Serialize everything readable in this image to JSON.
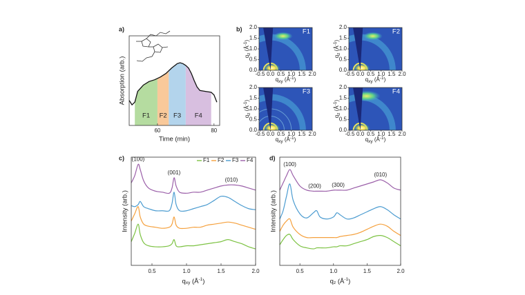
{
  "panel_a": {
    "label": "a)",
    "type": "area",
    "x_label": "Time (min)",
    "y_label": "Absorption (arb.)",
    "xlim": [
      50,
      82
    ],
    "ylim": [
      0,
      100
    ],
    "xticks": [
      60,
      80
    ],
    "color": "#111111",
    "x": [
      50,
      51,
      52,
      53,
      55,
      57,
      59,
      61,
      63,
      65,
      67,
      68,
      69,
      70,
      71,
      72,
      73,
      74,
      75,
      77,
      79,
      80,
      81
    ],
    "values": [
      28,
      23,
      26,
      38,
      45,
      49,
      51,
      54,
      58,
      64,
      69,
      70,
      69,
      67,
      64,
      58,
      50,
      43,
      39,
      38,
      37,
      34,
      26
    ],
    "fractions": [
      {
        "name": "F1",
        "start": 52,
        "end": 60,
        "color": "#b5dca0"
      },
      {
        "name": "F2",
        "start": 60,
        "end": 64,
        "color": "#f9c99a"
      },
      {
        "name": "F3",
        "start": 64,
        "end": 70,
        "color": "#b3d4ec"
      },
      {
        "name": "F4",
        "start": 70,
        "end": 79,
        "color": "#d8bfe0"
      }
    ]
  },
  "panel_b": {
    "label": "b)",
    "type": "image-grid",
    "images": [
      {
        "name": "F1"
      },
      {
        "name": "F2"
      },
      {
        "name": "F3"
      },
      {
        "name": "F4"
      }
    ],
    "x_label": {
      "main": "q",
      "sub": "xy",
      "unit": " (Å",
      "sup": "-1",
      "close": ")"
    },
    "y_label": {
      "main": "q",
      "sub": "z",
      "unit": " (Å",
      "sup": "-1",
      "close": ")"
    },
    "xlim": [
      -0.55,
      2.0
    ],
    "ylim": [
      0,
      2.0
    ],
    "xticks": [
      -0.5,
      {
        "value": 0,
        "label": "0.0"
      },
      0.5,
      {
        "value": 1,
        "label": "1.0"
      },
      1.5,
      {
        "value": 2,
        "label": "2.0"
      }
    ],
    "yticks": [
      {
        "value": 0,
        "label": "0.0"
      },
      0.5,
      {
        "value": 1,
        "label": "1.0"
      },
      1.5,
      {
        "value": 2,
        "label": "2.0"
      }
    ]
  },
  "panel_c": {
    "label": "c)",
    "type": "line",
    "y_label": "Intensity (arb.)",
    "x_label": {
      "main": "q",
      "sub": "xy",
      "unit": " (Å",
      "sup": "-1",
      "close": ")"
    },
    "xlim": [
      0.2,
      2.0
    ],
    "ylim": [
      0,
      105
    ],
    "xticks": [
      0.5,
      {
        "value": 1,
        "label": "1.0"
      },
      1.5,
      {
        "value": 2,
        "label": "2.0"
      }
    ],
    "x": [
      0.2,
      0.25,
      0.3,
      0.33,
      0.38,
      0.45,
      0.55,
      0.65,
      0.75,
      0.79,
      0.82,
      0.85,
      0.9,
      1.0,
      1.1,
      1.2,
      1.3,
      1.4,
      1.5,
      1.6,
      1.7,
      1.8,
      1.9,
      2.0
    ],
    "series": [
      {
        "name": "F1",
        "color": "#7cc242",
        "values": [
          23,
          31,
          40,
          30,
          22,
          19,
          18,
          18,
          19,
          21,
          25,
          19,
          18,
          19,
          19,
          20,
          21,
          22,
          23,
          25,
          23,
          21,
          18,
          16
        ]
      },
      {
        "name": "F2",
        "color": "#f5a03c",
        "values": [
          43,
          50,
          57,
          47,
          40,
          38,
          37,
          36,
          37,
          40,
          47,
          39,
          36,
          36,
          37,
          37,
          39,
          40,
          41,
          42,
          41,
          39,
          37,
          35
        ]
      },
      {
        "name": "F3",
        "color": "#4a9bd0",
        "values": [
          58,
          57,
          59,
          62,
          57,
          55,
          53,
          53,
          53,
          60,
          71,
          59,
          53,
          53,
          55,
          57,
          59,
          63,
          67,
          66,
          62,
          58,
          55,
          54
        ]
      },
      {
        "name": "F4",
        "color": "#9a5ea8",
        "values": [
          80,
          87,
          98,
          93,
          82,
          75,
          72,
          71,
          70,
          75,
          85,
          77,
          71,
          70,
          71,
          71,
          73,
          75,
          77,
          78,
          78,
          77,
          75,
          73
        ]
      }
    ],
    "annotations": [
      {
        "text": "(100)",
        "x": 0.3
      },
      {
        "text": "(001)",
        "x": 0.82
      },
      {
        "text": "(010)",
        "x": 1.65
      }
    ]
  },
  "panel_d": {
    "label": "d)",
    "type": "line",
    "y_label": "Intensity (arb.)",
    "x_label": {
      "main": "q",
      "sub": "z",
      "unit": " (Å",
      "sup": "-1",
      "close": ")"
    },
    "xlim": [
      0.2,
      2.0
    ],
    "ylim": [
      0,
      105
    ],
    "xticks": [
      0.5,
      {
        "value": 1,
        "label": "1.0"
      },
      1.5,
      {
        "value": 2,
        "label": "2.0"
      }
    ],
    "x": [
      0.2,
      0.25,
      0.3,
      0.35,
      0.4,
      0.5,
      0.6,
      0.7,
      0.75,
      0.8,
      0.9,
      1.0,
      1.05,
      1.1,
      1.2,
      1.3,
      1.4,
      1.5,
      1.6,
      1.7,
      1.8,
      1.9,
      2.0
    ],
    "series": [
      {
        "color": "#7cc242",
        "values": [
          20,
          25,
          29,
          30,
          25,
          19,
          17,
          16,
          17,
          17,
          17,
          18,
          18,
          19,
          19,
          21,
          23,
          25,
          28,
          29,
          27,
          23,
          19
        ]
      },
      {
        "color": "#f5a03c",
        "values": [
          33,
          39,
          43,
          45,
          37,
          30,
          27,
          27,
          27,
          27,
          27,
          27,
          27,
          28,
          29,
          30,
          32,
          35,
          38,
          40,
          38,
          33,
          29
        ]
      },
      {
        "color": "#4a9bd0",
        "values": [
          45,
          53,
          67,
          79,
          63,
          50,
          46,
          51,
          53,
          47,
          45,
          47,
          51,
          49,
          45,
          46,
          49,
          52,
          55,
          57,
          54,
          49,
          45
        ]
      },
      {
        "color": "#9a5ea8",
        "values": [
          73,
          80,
          87,
          93,
          87,
          77,
          73,
          72,
          72,
          72,
          72,
          73,
          73,
          73,
          73,
          75,
          77,
          79,
          81,
          83,
          80,
          75,
          73
        ]
      }
    ],
    "annotations": [
      {
        "text": "(100)",
        "x": 0.35
      },
      {
        "text": "(200)",
        "x": 0.72
      },
      {
        "text": "(300)",
        "x": 1.07
      },
      {
        "text": "(010)",
        "x": 1.7
      }
    ]
  }
}
